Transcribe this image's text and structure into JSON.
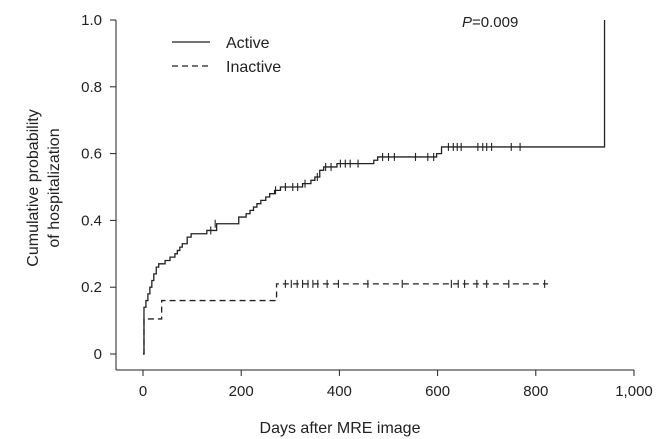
{
  "chart_data": {
    "type": "line",
    "title": "",
    "xlabel": "Days after MRE image",
    "ylabel_lines": [
      "Cumulative probability",
      "of hospitalization"
    ],
    "xlim": [
      0,
      1000
    ],
    "ylim": [
      0,
      1.0
    ],
    "x_ticks": [
      0,
      200,
      400,
      600,
      800,
      1000
    ],
    "x_tick_labels": [
      "0",
      "200",
      "400",
      "600",
      "800",
      "1,000"
    ],
    "y_ticks": [
      0,
      0.2,
      0.4,
      0.6,
      0.8,
      1.0
    ],
    "y_tick_labels": [
      "0",
      "0.2",
      "0.4",
      "0.6",
      "0.8",
      "1.0"
    ],
    "annotation": {
      "italic": "P",
      "rest": "=0.009"
    },
    "legend_position": "top-left",
    "grid": false,
    "series": [
      {
        "name": "Active",
        "style": "solid",
        "color": "#222222",
        "steps": [
          [
            0,
            0
          ],
          [
            2,
            0.14
          ],
          [
            6,
            0.16
          ],
          [
            10,
            0.18
          ],
          [
            14,
            0.2
          ],
          [
            18,
            0.22
          ],
          [
            22,
            0.24
          ],
          [
            27,
            0.26
          ],
          [
            32,
            0.27
          ],
          [
            45,
            0.28
          ],
          [
            55,
            0.29
          ],
          [
            65,
            0.3
          ],
          [
            70,
            0.31
          ],
          [
            75,
            0.32
          ],
          [
            80,
            0.33
          ],
          [
            90,
            0.35
          ],
          [
            98,
            0.36
          ],
          [
            130,
            0.37
          ],
          [
            150,
            0.39
          ],
          [
            195,
            0.41
          ],
          [
            210,
            0.42
          ],
          [
            218,
            0.43
          ],
          [
            225,
            0.44
          ],
          [
            232,
            0.45
          ],
          [
            240,
            0.46
          ],
          [
            250,
            0.47
          ],
          [
            258,
            0.48
          ],
          [
            268,
            0.49
          ],
          [
            280,
            0.5
          ],
          [
            325,
            0.51
          ],
          [
            342,
            0.52
          ],
          [
            350,
            0.53
          ],
          [
            360,
            0.55
          ],
          [
            368,
            0.56
          ],
          [
            395,
            0.57
          ],
          [
            470,
            0.58
          ],
          [
            478,
            0.59
          ],
          [
            598,
            0.6
          ],
          [
            608,
            0.62
          ],
          [
            940,
            1.0
          ]
        ],
        "end_x": 940,
        "censored": [
          [
            138,
            0.37
          ],
          [
            147,
            0.39
          ],
          [
            270,
            0.49
          ],
          [
            290,
            0.5
          ],
          [
            305,
            0.5
          ],
          [
            315,
            0.5
          ],
          [
            330,
            0.51
          ],
          [
            355,
            0.53
          ],
          [
            372,
            0.56
          ],
          [
            383,
            0.56
          ],
          [
            402,
            0.57
          ],
          [
            412,
            0.57
          ],
          [
            422,
            0.57
          ],
          [
            438,
            0.57
          ],
          [
            488,
            0.59
          ],
          [
            500,
            0.59
          ],
          [
            512,
            0.59
          ],
          [
            555,
            0.59
          ],
          [
            580,
            0.59
          ],
          [
            592,
            0.59
          ],
          [
            622,
            0.62
          ],
          [
            632,
            0.62
          ],
          [
            640,
            0.62
          ],
          [
            648,
            0.62
          ],
          [
            682,
            0.62
          ],
          [
            692,
            0.62
          ],
          [
            700,
            0.62
          ],
          [
            710,
            0.62
          ],
          [
            750,
            0.62
          ],
          [
            768,
            0.62
          ]
        ]
      },
      {
        "name": "Inactive",
        "style": "dashed",
        "color": "#222222",
        "steps": [
          [
            0,
            0
          ],
          [
            2,
            0.105
          ],
          [
            38,
            0.16
          ],
          [
            272,
            0.21
          ]
        ],
        "end_x": 825,
        "censored": [
          [
            290,
            0.21
          ],
          [
            302,
            0.21
          ],
          [
            314,
            0.21
          ],
          [
            325,
            0.21
          ],
          [
            336,
            0.21
          ],
          [
            346,
            0.21
          ],
          [
            356,
            0.21
          ],
          [
            375,
            0.21
          ],
          [
            398,
            0.21
          ],
          [
            458,
            0.21
          ],
          [
            528,
            0.21
          ],
          [
            628,
            0.21
          ],
          [
            642,
            0.21
          ],
          [
            655,
            0.21
          ],
          [
            680,
            0.21
          ],
          [
            700,
            0.21
          ],
          [
            745,
            0.21
          ],
          [
            818,
            0.21
          ]
        ]
      }
    ]
  }
}
